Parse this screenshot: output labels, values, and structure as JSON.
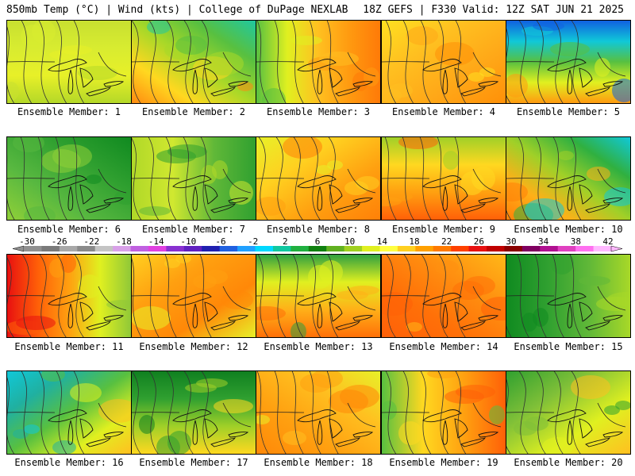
{
  "header": {
    "left_title": "850mb Temp (°C) | Wind (kts) | College of DuPage NEXLAB",
    "right_title": "18Z GEFS | F330 Valid: 12Z SAT JUN 21 2025"
  },
  "colorbar": {
    "tick_labels": [
      "-30",
      "-26",
      "-22",
      "-18",
      "-14",
      "-10",
      "-6",
      "-2",
      "2",
      "6",
      "10",
      "14",
      "18",
      "22",
      "26",
      "30",
      "34",
      "38",
      "42"
    ],
    "colors": [
      "#909090",
      "#7a7a7a",
      "#a8a8a8",
      "#8a8a8a",
      "#c4c4c4",
      "#d8a0e8",
      "#c060e0",
      "#e040e0",
      "#8830d0",
      "#6020c0",
      "#2020b0",
      "#2060e0",
      "#20a0ff",
      "#00d8ff",
      "#10c8a0",
      "#20b040",
      "#108010",
      "#60b020",
      "#a0d020",
      "#e0f020",
      "#ffff40",
      "#ffd020",
      "#ffa000",
      "#ff7a00",
      "#ff4000",
      "#e81010",
      "#c00000",
      "#8a0000",
      "#800060",
      "#b01090",
      "#e040c0",
      "#ff70f0",
      "#ffb8ff"
    ]
  },
  "members": [
    {
      "label": "Ensemble Member: 1",
      "colors": [
        "#c8e030",
        "#d8ec30",
        "#e8f028",
        "#b4d828"
      ]
    },
    {
      "label": "Ensemble Member: 2",
      "colors": [
        "#20c8a0",
        "#58c040",
        "#a8d828",
        "#ffd820",
        "#ff8a10"
      ]
    },
    {
      "label": "Ensemble Member: 3",
      "colors": [
        "#58c040",
        "#e0f020",
        "#ffc020",
        "#ff9a10",
        "#ff7a08"
      ]
    },
    {
      "label": "Ensemble Member: 4",
      "colors": [
        "#ffe020",
        "#ffc020",
        "#ffa818",
        "#ff9008"
      ]
    },
    {
      "label": "Ensemble Member: 5",
      "colors": [
        "#1060e0",
        "#10c8d8",
        "#58c040",
        "#e0f020",
        "#ff9a10"
      ]
    },
    {
      "label": "Ensemble Member: 6",
      "colors": [
        "#108a20",
        "#30a030",
        "#58b840",
        "#90d038"
      ]
    },
    {
      "label": "Ensemble Member: 7",
      "colors": [
        "#b0d828",
        "#d0e830",
        "#60b838",
        "#30a030"
      ]
    },
    {
      "label": "Ensemble Member: 8",
      "colors": [
        "#e8f028",
        "#ffd020",
        "#ffa010",
        "#ff8008"
      ]
    },
    {
      "label": "Ensemble Member: 9",
      "colors": [
        "#a0d028",
        "#ffd820",
        "#ffa010",
        "#ff6008"
      ]
    },
    {
      "label": "Ensemble Member: 10",
      "colors": [
        "#10c8d8",
        "#30b040",
        "#a0d028",
        "#ffb018",
        "#ff8008"
      ]
    },
    {
      "label": "Ensemble Member: 11",
      "colors": [
        "#e81010",
        "#ff6008",
        "#ffa010",
        "#e0f020",
        "#90c838"
      ]
    },
    {
      "label": "Ensemble Member: 12",
      "colors": [
        "#ffd020",
        "#ffa010",
        "#ff8808",
        "#e8f028"
      ]
    },
    {
      "label": "Ensemble Member: 13",
      "colors": [
        "#30a040",
        "#e0f020",
        "#ffb018",
        "#ff7008"
      ]
    },
    {
      "label": "Ensemble Member: 14",
      "colors": [
        "#ffb818",
        "#ff9010",
        "#ff7008",
        "#ff6008"
      ]
    },
    {
      "label": "Ensemble Member: 15",
      "colors": [
        "#108a20",
        "#30a030",
        "#60b838",
        "#a8d828"
      ]
    },
    {
      "label": "Ensemble Member: 16",
      "colors": [
        "#10c8d8",
        "#20b0a0",
        "#58c040",
        "#e0f020",
        "#ffc020"
      ]
    },
    {
      "label": "Ensemble Member: 17",
      "colors": [
        "#108020",
        "#30a030",
        "#a0d028",
        "#ffd820"
      ]
    },
    {
      "label": "Ensemble Member: 18",
      "colors": [
        "#e8f028",
        "#ffc020",
        "#ffa010",
        "#ff8808"
      ]
    },
    {
      "label": "Ensemble Member: 19",
      "colors": [
        "#58c040",
        "#ffd820",
        "#ffa010",
        "#ff6008"
      ]
    },
    {
      "label": "Ensemble Member: 20",
      "colors": [
        "#30a030",
        "#80c038",
        "#e0f020",
        "#ffc020"
      ]
    }
  ]
}
